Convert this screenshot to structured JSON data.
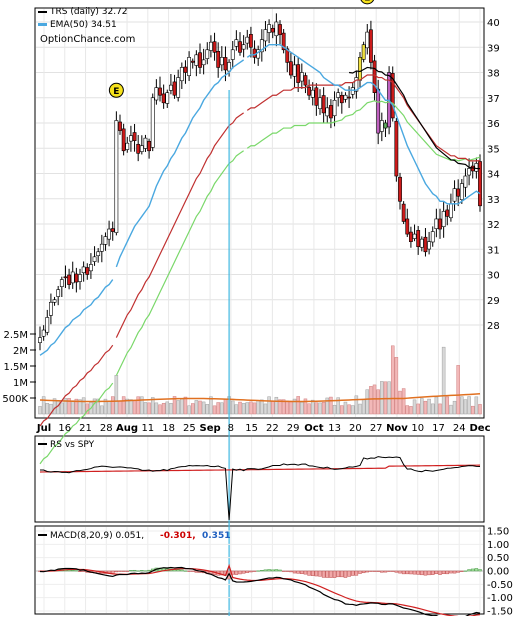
{
  "chart_data": [
    {
      "type": "candlestick",
      "legend": [
        {
          "label": "TRS (daily) 32.72",
          "color": "#000000"
        },
        {
          "label": "EMA(50) 34.51",
          "color": "#4aa8e0"
        }
      ],
      "watermark": "OptionChance.com",
      "earnings_marker": "E",
      "price_ticks": [
        28,
        29,
        30,
        31,
        32,
        33,
        34,
        35,
        36,
        37,
        38,
        39,
        40
      ],
      "volume_ticks": [
        "2.5M",
        "2M",
        "1.5M",
        "1M",
        "500K"
      ],
      "x_labels": [
        "Jul",
        "16",
        "21",
        "28",
        "Aug",
        "11",
        "18",
        "25",
        "Sep",
        "8",
        "15",
        "22",
        "29",
        "Oct",
        "13",
        "20",
        "27",
        "Nov",
        "10",
        "17",
        "24",
        "Dec"
      ],
      "closes": [
        27.5,
        27.8,
        28.3,
        28.9,
        29.0,
        29.4,
        29.8,
        29.9,
        29.6,
        30.1,
        29.7,
        30.0,
        30.3,
        30.0,
        30.4,
        30.7,
        30.9,
        31.2,
        31.5,
        31.8,
        31.7,
        36.1,
        35.7,
        34.9,
        35.2,
        35.5,
        35.3,
        34.8,
        35.1,
        35.4,
        34.9,
        37.0,
        37.4,
        37.1,
        36.8,
        37.2,
        37.5,
        37.1,
        37.8,
        38.2,
        38.0,
        38.6,
        38.4,
        38.7,
        38.2,
        38.5,
        38.9,
        39.2,
        38.8,
        38.2,
        38.6,
        38.1,
        38.4,
        38.9,
        39.3,
        38.8,
        39.1,
        39.4,
        39.0,
        38.6,
        38.9,
        39.3,
        39.7,
        39.9,
        39.6,
        40.0,
        39.5,
        38.9,
        38.4,
        37.9,
        38.3,
        37.6,
        38.0,
        37.5,
        37.1,
        37.3,
        36.7,
        37.0,
        36.4,
        36.6,
        36.2,
        36.9,
        37.2,
        36.8,
        37.1,
        37.0,
        37.4,
        37.8,
        38.6,
        39.1,
        39.6,
        38.4,
        37.2,
        35.6,
        36.1,
        35.8,
        38.0,
        36.2,
        33.9,
        32.9,
        32.1,
        31.6,
        31.3,
        31.6,
        31.1,
        31.4,
        30.9,
        31.3,
        31.7,
        32.2,
        31.8,
        32.5,
        32.3,
        32.8,
        33.4,
        33.1,
        33.6,
        33.9,
        34.2,
        34.1,
        34.4,
        32.72
      ],
      "ema_fast": [
        26.8,
        26.9,
        27.0,
        27.2,
        27.3,
        27.5,
        27.7,
        27.9,
        28.0,
        28.2,
        28.3,
        28.4,
        28.6,
        28.7,
        28.8,
        29.0,
        29.1,
        29.3,
        29.5,
        29.6,
        29.8,
        30.3,
        30.7,
        31.0,
        31.3,
        31.6,
        31.9,
        32.1,
        32.3,
        32.5,
        32.7,
        33.1,
        33.5,
        33.8,
        34.1,
        34.3,
        34.6,
        34.8,
        35.1,
        35.4,
        35.6,
        35.9,
        36.2,
        36.4,
        36.6,
        36.9,
        37.1,
        37.3,
        37.5,
        37.6,
        37.8,
        37.9,
        38.0,
        38.2,
        38.3,
        38.4,
        38.5,
        38.6,
        38.7,
        38.7,
        38.8,
        38.9,
        39.0,
        39.1,
        39.1,
        39.1,
        39.1,
        39.0,
        38.9,
        38.8,
        38.7,
        38.6,
        38.5,
        38.4,
        38.3,
        38.2,
        38.1,
        38.0,
        37.8,
        37.7,
        37.6,
        37.5,
        37.5,
        37.4,
        37.3,
        37.3,
        37.3,
        37.3,
        37.4,
        37.5,
        37.6,
        37.6,
        37.5,
        37.3,
        37.1,
        36.9,
        36.9,
        36.7,
        36.3,
        35.9,
        35.5,
        35.1,
        34.8,
        34.5,
        34.2,
        33.9,
        33.6,
        33.4,
        33.2,
        33.1,
        32.9,
        32.9,
        32.8,
        32.8,
        32.8,
        32.8,
        32.9,
        33.0,
        33.1,
        33.2,
        33.3,
        33.2
      ],
      "ema_slow": [
        24.0,
        24.2,
        24.3,
        24.5,
        24.7,
        24.8,
        25.0,
        25.2,
        25.3,
        25.5,
        25.6,
        25.8,
        25.9,
        26.1,
        26.2,
        26.4,
        26.5,
        26.7,
        26.9,
        27.0,
        27.2,
        27.5,
        27.8,
        28.1,
        28.4,
        28.6,
        28.9,
        29.2,
        29.4,
        29.7,
        29.9,
        30.2,
        30.5,
        30.8,
        31.1,
        31.4,
        31.7,
        32.0,
        32.3,
        32.6,
        32.9,
        33.2,
        33.5,
        33.8,
        34.0,
        34.3,
        34.6,
        34.8,
        35.1,
        35.3,
        35.5,
        35.7,
        35.9,
        36.0,
        36.2,
        36.3,
        36.4,
        36.5,
        36.6,
        36.6,
        36.7,
        36.8,
        36.9,
        37.0,
        37.1,
        37.1,
        37.2,
        37.3,
        37.3,
        37.3,
        37.4,
        37.4,
        37.4,
        37.4,
        37.5,
        37.5,
        37.5,
        37.5,
        37.5,
        37.5,
        37.5,
        37.5,
        37.5,
        37.5,
        37.6,
        37.6,
        37.6,
        37.7,
        37.7,
        37.8,
        37.9,
        37.9,
        37.9,
        37.8,
        37.8,
        37.7,
        37.7,
        37.6,
        37.4,
        37.2,
        37.0,
        36.7,
        36.5,
        36.3,
        36.1,
        35.9,
        35.7,
        35.5,
        35.3,
        35.1,
        35.0,
        34.9,
        34.8,
        34.7,
        34.7,
        34.6,
        34.6,
        34.6,
        34.5,
        34.5,
        34.5,
        34.51
      ],
      "rs_label": "RS vs SPY",
      "macd_label": "MACD(8,20,9) 0.051,",
      "macd_signal_text": "-0.301,",
      "macd_hist_text": "0.351",
      "macd_ticks": [
        "1.50",
        "1.00",
        "0.50",
        "0.00",
        "-0.50",
        "-1.00",
        "-1.50"
      ]
    }
  ]
}
